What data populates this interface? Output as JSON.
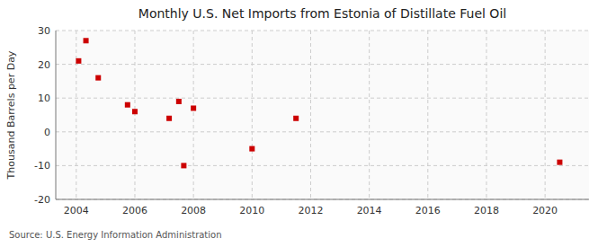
{
  "chart_data": {
    "type": "scatter",
    "title": "Monthly U.S. Net Imports from Estonia of Distillate Fuel Oil",
    "ylabel": "Thousand Barrels per Day",
    "source": "Source: U.S. Energy Information Administration",
    "x": [
      2004.08,
      2004.33,
      2004.75,
      2005.75,
      2006.0,
      2007.17,
      2007.5,
      2008.0,
      2007.67,
      2010.0,
      2011.5,
      2020.5
    ],
    "values": [
      21,
      27,
      16,
      8,
      6,
      4,
      9,
      7,
      -10,
      -5,
      4,
      -9
    ],
    "color": "#cc0000",
    "marker": "square",
    "xlim": [
      2003.3,
      2021.5
    ],
    "ylim": [
      -20,
      30
    ],
    "xticks": [
      2004,
      2006,
      2008,
      2010,
      2012,
      2014,
      2016,
      2018,
      2020
    ],
    "yticks": [
      -20,
      -10,
      0,
      10,
      20,
      30
    ],
    "grid": true
  }
}
